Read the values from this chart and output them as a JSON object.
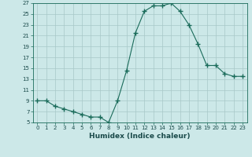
{
  "x": [
    0,
    1,
    2,
    3,
    4,
    5,
    6,
    7,
    8,
    9,
    10,
    11,
    12,
    13,
    14,
    15,
    16,
    17,
    18,
    19,
    20,
    21,
    22,
    23
  ],
  "y": [
    9,
    9,
    8,
    7.5,
    7,
    6.5,
    6,
    6,
    5,
    9,
    14.5,
    21.5,
    25.5,
    26.5,
    26.5,
    27,
    25.5,
    23,
    19.5,
    15.5,
    15.5,
    14,
    13.5,
    13.5
  ],
  "xlabel": "Humidex (Indice chaleur)",
  "ylim": [
    5,
    27
  ],
  "xlim": [
    -0.5,
    23.5
  ],
  "yticks": [
    5,
    7,
    9,
    11,
    13,
    15,
    17,
    19,
    21,
    23,
    25,
    27
  ],
  "xticks": [
    0,
    1,
    2,
    3,
    4,
    5,
    6,
    7,
    8,
    9,
    10,
    11,
    12,
    13,
    14,
    15,
    16,
    17,
    18,
    19,
    20,
    21,
    22,
    23
  ],
  "xtick_labels": [
    "0",
    "1",
    "2",
    "3",
    "4",
    "5",
    "6",
    "7",
    "8",
    "9",
    "10",
    "11",
    "12",
    "13",
    "14",
    "15",
    "16",
    "17",
    "18",
    "19",
    "20",
    "21",
    "22",
    "23"
  ],
  "line_color": "#1a6b5a",
  "marker": "+",
  "marker_size": 4,
  "bg_color": "#cce8e8",
  "grid_color": "#a8c8c8",
  "fig_bg": "#cce8e8",
  "spine_color": "#1a6b5a",
  "label_color": "#1a4a4a",
  "tick_fontsize": 5,
  "xlabel_fontsize": 6.5
}
